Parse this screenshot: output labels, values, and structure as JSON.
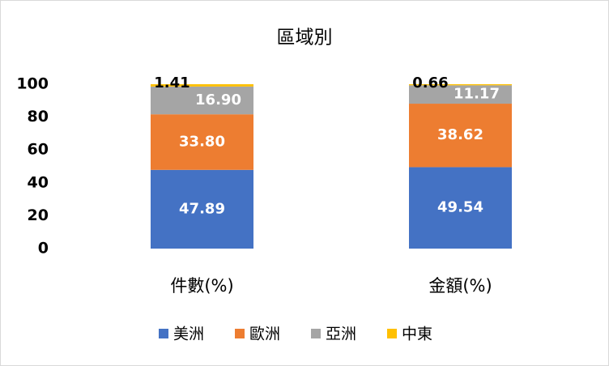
{
  "chart_data": {
    "type": "stacked_bar",
    "title": "區域別",
    "categories": [
      "件數(%)",
      "金額(%)"
    ],
    "series": [
      {
        "name": "美洲",
        "color": "#4472c4",
        "values": [
          47.89,
          49.54
        ],
        "value_labels": [
          "47.89",
          "49.54"
        ]
      },
      {
        "name": "歐洲",
        "color": "#ed7d31",
        "values": [
          33.8,
          38.62
        ],
        "value_labels": [
          "33.80",
          "38.62"
        ]
      },
      {
        "name": "亞洲",
        "color": "#a5a5a5",
        "values": [
          16.9,
          11.17
        ],
        "value_labels": [
          "16.90",
          "11.17"
        ]
      },
      {
        "name": "中東",
        "color": "#ffc000",
        "values": [
          1.41,
          0.66
        ],
        "value_labels": [
          "1.41",
          "0.66"
        ]
      }
    ],
    "ylim": [
      0,
      100
    ],
    "yticks": [
      0,
      20,
      40,
      60,
      80,
      100
    ],
    "grid": false,
    "legend": "bottom"
  }
}
